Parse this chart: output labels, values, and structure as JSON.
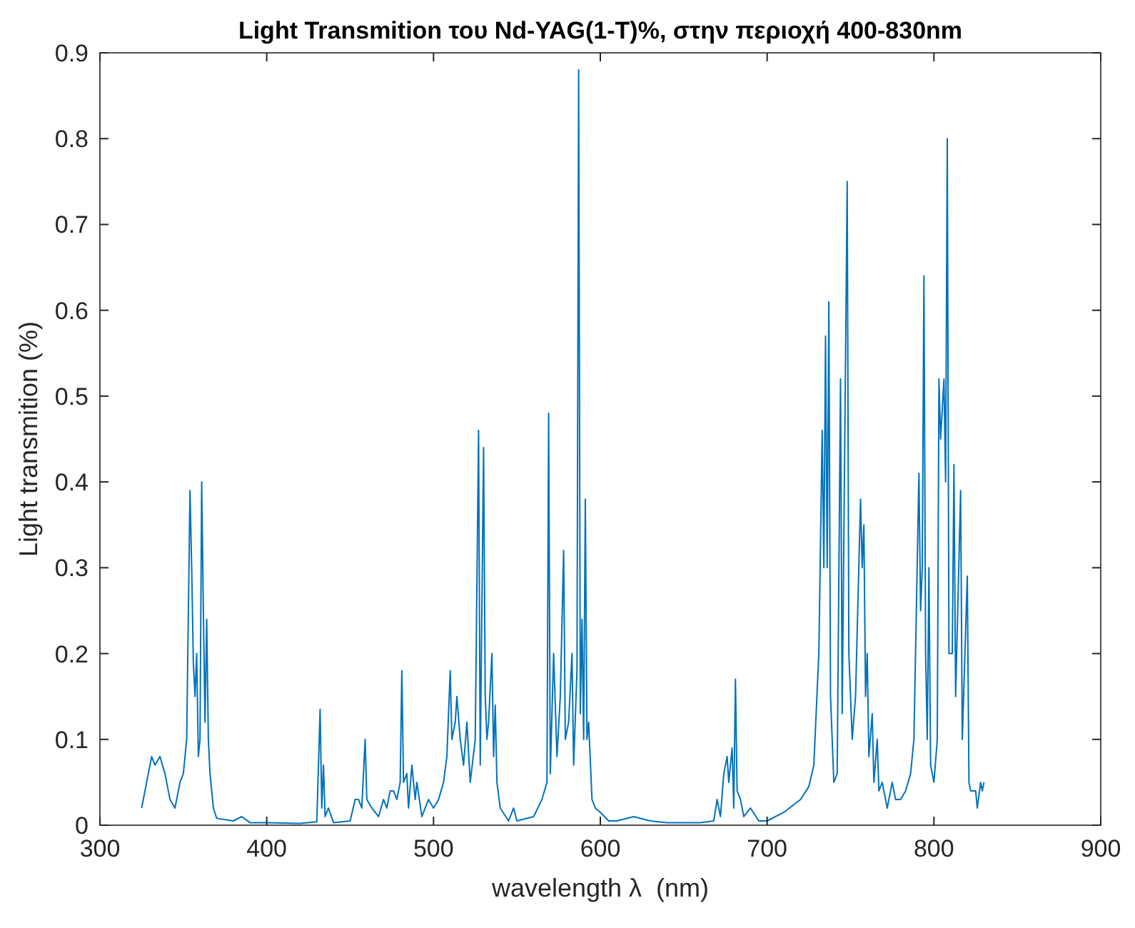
{
  "chart_data": {
    "type": "line",
    "title": "Light Transmition του Nd-YAG(1-T)%, στην περιοχή 400-830nm",
    "xlabel": "wavelength λ  (nm)",
    "ylabel": "Light transmition (%)",
    "xlim": [
      300,
      900
    ],
    "ylim": [
      0,
      0.9
    ],
    "xticks": [
      300,
      400,
      500,
      600,
      700,
      800,
      900
    ],
    "yticks": [
      0,
      0.1,
      0.2,
      0.3,
      0.4,
      0.5,
      0.6,
      0.7,
      0.8,
      0.9
    ],
    "grid": false,
    "line_style": "solid",
    "marker": "none",
    "series": [
      {
        "color": "#0072bd",
        "x": [
          325,
          328,
          331,
          333,
          336,
          339,
          342,
          345,
          348,
          350,
          352,
          354,
          355,
          356,
          357,
          358,
          359,
          360,
          361,
          362,
          363,
          364,
          365,
          366,
          368,
          370,
          380,
          385,
          390,
          400,
          420,
          430,
          432,
          433,
          434,
          435,
          437,
          440,
          450,
          453,
          455,
          457,
          459,
          460,
          463,
          467,
          470,
          472,
          474,
          476,
          478,
          480,
          481,
          482,
          484,
          485,
          487,
          489,
          490,
          493,
          497,
          500,
          503,
          506,
          508,
          510,
          511,
          513,
          514,
          516,
          518,
          520,
          522,
          525,
          527,
          528,
          530,
          531,
          532,
          533,
          535,
          536,
          537,
          538,
          540,
          545,
          548,
          550,
          560,
          565,
          568,
          569,
          570,
          572,
          574,
          576,
          578,
          579,
          581,
          583,
          584,
          586,
          587,
          588,
          589,
          590,
          591,
          592,
          593,
          595,
          597,
          600,
          605,
          610,
          620,
          630,
          640,
          660,
          668,
          670,
          672,
          674,
          676,
          677,
          679,
          680,
          681,
          682,
          684,
          686,
          690,
          695,
          700,
          710,
          720,
          725,
          728,
          731,
          733,
          734,
          735,
          736,
          737,
          738,
          740,
          742,
          744,
          745,
          748,
          749,
          751,
          753,
          756,
          757,
          758,
          759,
          760,
          761,
          763,
          764,
          766,
          767,
          769,
          772,
          775,
          777,
          780,
          783,
          786,
          788,
          791,
          792,
          793,
          794,
          795,
          796,
          797,
          798,
          800,
          802,
          803,
          804,
          806,
          807,
          808,
          809,
          811,
          812,
          813,
          816,
          817,
          820,
          821,
          822,
          825,
          826,
          828,
          829,
          830
        ],
        "values": [
          0.02,
          0.05,
          0.08,
          0.07,
          0.08,
          0.06,
          0.03,
          0.02,
          0.05,
          0.06,
          0.1,
          0.39,
          0.3,
          0.19,
          0.15,
          0.2,
          0.08,
          0.1,
          0.4,
          0.25,
          0.12,
          0.24,
          0.1,
          0.06,
          0.02,
          0.008,
          0.005,
          0.01,
          0.003,
          0.003,
          0.002,
          0.004,
          0.135,
          0.02,
          0.07,
          0.01,
          0.02,
          0.003,
          0.005,
          0.03,
          0.03,
          0.02,
          0.1,
          0.03,
          0.02,
          0.01,
          0.03,
          0.02,
          0.04,
          0.04,
          0.03,
          0.05,
          0.18,
          0.05,
          0.06,
          0.02,
          0.07,
          0.03,
          0.05,
          0.01,
          0.03,
          0.02,
          0.03,
          0.05,
          0.08,
          0.18,
          0.1,
          0.12,
          0.15,
          0.1,
          0.07,
          0.12,
          0.05,
          0.1,
          0.46,
          0.07,
          0.44,
          0.15,
          0.1,
          0.12,
          0.2,
          0.08,
          0.14,
          0.05,
          0.02,
          0.005,
          0.02,
          0.005,
          0.01,
          0.03,
          0.05,
          0.48,
          0.06,
          0.2,
          0.08,
          0.15,
          0.32,
          0.1,
          0.12,
          0.2,
          0.07,
          0.18,
          0.88,
          0.13,
          0.24,
          0.1,
          0.38,
          0.1,
          0.12,
          0.03,
          0.02,
          0.015,
          0.005,
          0.005,
          0.01,
          0.005,
          0.003,
          0.003,
          0.005,
          0.03,
          0.01,
          0.06,
          0.08,
          0.05,
          0.09,
          0.02,
          0.17,
          0.04,
          0.03,
          0.01,
          0.02,
          0.005,
          0.005,
          0.015,
          0.03,
          0.045,
          0.07,
          0.2,
          0.46,
          0.3,
          0.57,
          0.3,
          0.61,
          0.15,
          0.05,
          0.06,
          0.52,
          0.13,
          0.75,
          0.2,
          0.1,
          0.15,
          0.38,
          0.3,
          0.35,
          0.15,
          0.2,
          0.08,
          0.13,
          0.05,
          0.1,
          0.04,
          0.05,
          0.02,
          0.05,
          0.03,
          0.03,
          0.04,
          0.06,
          0.1,
          0.41,
          0.25,
          0.3,
          0.64,
          0.2,
          0.1,
          0.3,
          0.07,
          0.05,
          0.1,
          0.52,
          0.45,
          0.52,
          0.4,
          0.8,
          0.2,
          0.2,
          0.42,
          0.15,
          0.39,
          0.1,
          0.29,
          0.05,
          0.04,
          0.04,
          0.02,
          0.05,
          0.04,
          0.05
        ]
      }
    ]
  }
}
